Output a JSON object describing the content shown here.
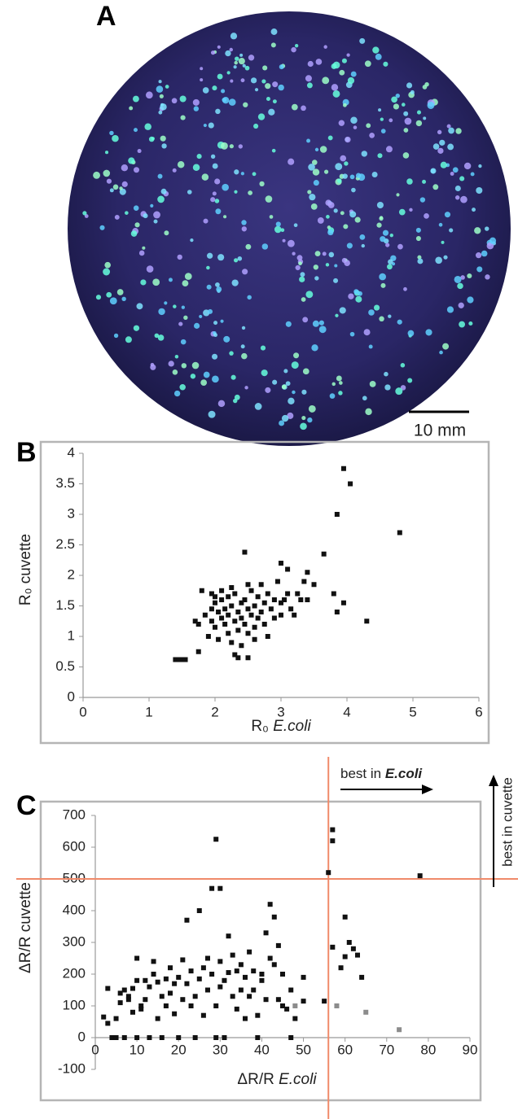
{
  "figure_a": {
    "label": "A",
    "scale_bar": "10 mm"
  },
  "chart_data": [
    {
      "type": "scatter",
      "label": "B",
      "ylabel": "R₀ cuvette",
      "xlabel": [
        {
          "text": "R₀ ",
          "style": "normal"
        },
        {
          "text": "E.coli",
          "style": "italic"
        }
      ],
      "xlim": [
        0,
        6
      ],
      "xticks": [
        0,
        1,
        2,
        3,
        4,
        5,
        6
      ],
      "ylim": [
        0,
        4
      ],
      "yticks": [
        0,
        0.5,
        1,
        1.5,
        2,
        2.5,
        3,
        3.5,
        4
      ],
      "series": [
        {
          "color": "#111111",
          "x": [
            1.4,
            1.45,
            1.5,
            1.55,
            1.7,
            1.75,
            1.8,
            1.75,
            1.85,
            1.9,
            1.95,
            1.95,
            2.0,
            2.0,
            2.05,
            2.05,
            2.1,
            2.1,
            2.1,
            2.15,
            2.15,
            2.2,
            2.2,
            2.2,
            2.25,
            2.25,
            2.3,
            2.3,
            2.3,
            2.35,
            2.35,
            2.35,
            2.4,
            2.4,
            2.4,
            2.45,
            2.45,
            2.45,
            2.5,
            2.5,
            2.5,
            2.55,
            2.55,
            2.6,
            2.6,
            2.65,
            2.65,
            2.7,
            2.7,
            2.75,
            2.75,
            2.8,
            2.8,
            2.85,
            2.9,
            2.9,
            2.95,
            3.0,
            3.0,
            3.0,
            3.05,
            3.1,
            3.1,
            3.15,
            3.2,
            3.25,
            3.3,
            3.4,
            3.4,
            3.5,
            3.35,
            3.65,
            3.8,
            3.85,
            3.85,
            3.95,
            3.95,
            4.05,
            4.3,
            4.8,
            2.0,
            1.95,
            2.25,
            2.5,
            2.6
          ],
          "values": [
            0.62,
            0.62,
            0.62,
            0.62,
            1.25,
            1.2,
            1.75,
            0.75,
            1.35,
            1.0,
            1.45,
            1.25,
            1.15,
            1.55,
            1.4,
            0.95,
            1.3,
            1.6,
            1.75,
            1.2,
            1.45,
            1.05,
            1.65,
            1.35,
            0.9,
            1.5,
            1.25,
            1.7,
            0.7,
            1.4,
            1.1,
            0.65,
            1.55,
            1.3,
            0.85,
            2.38,
            1.2,
            1.6,
            1.45,
            0.65,
            1.05,
            1.75,
            1.35,
            1.5,
            1.15,
            1.65,
            1.3,
            1.85,
            1.4,
            1.2,
            1.55,
            1.0,
            1.7,
            1.45,
            1.6,
            1.3,
            1.9,
            2.2,
            1.55,
            1.35,
            1.6,
            2.1,
            1.7,
            1.45,
            1.35,
            1.7,
            1.6,
            2.05,
            1.6,
            1.85,
            1.9,
            2.35,
            1.7,
            1.4,
            3.0,
            3.75,
            1.55,
            3.5,
            1.25,
            2.7,
            1.65,
            1.7,
            1.8,
            1.85,
            0.95
          ]
        }
      ]
    },
    {
      "type": "scatter",
      "label": "C",
      "ylabel": "ΔR/R cuvette",
      "xlabel": [
        {
          "text": "ΔR/R ",
          "style": "normal"
        },
        {
          "text": "E.coli",
          "style": "italic"
        }
      ],
      "xlim": [
        0,
        90
      ],
      "xticks": [
        0,
        10,
        20,
        30,
        40,
        50,
        60,
        70,
        80,
        90
      ],
      "ylim": [
        -100,
        700
      ],
      "yticks": [
        -100,
        0,
        100,
        200,
        300,
        400,
        500,
        600,
        700
      ],
      "thresholds": {
        "x": 56,
        "y": 500,
        "color": "#f08a6a"
      },
      "annotations": {
        "x_best": [
          {
            "text": "best in ",
            "style": "normal"
          },
          {
            "text": "E.coli",
            "style": "bold"
          }
        ],
        "y_best": "best in cuvette"
      },
      "series": [
        {
          "color": "#111111",
          "x": [
            2,
            3,
            3,
            4,
            5,
            5,
            6,
            6,
            7,
            7,
            8,
            8,
            9,
            9,
            10,
            10,
            10,
            11,
            11,
            12,
            12,
            13,
            13,
            14,
            14,
            15,
            15,
            16,
            16,
            17,
            17,
            18,
            18,
            19,
            19,
            20,
            20,
            21,
            21,
            22,
            22,
            23,
            23,
            24,
            24,
            25,
            25,
            26,
            26,
            27,
            27,
            28,
            28,
            29,
            29,
            29,
            30,
            30,
            30,
            31,
            31,
            32,
            32,
            33,
            33,
            34,
            34,
            35,
            35,
            36,
            36,
            37,
            37,
            38,
            38,
            39,
            39,
            40,
            40,
            41,
            41,
            42,
            42,
            43,
            43,
            44,
            44,
            45,
            45,
            46,
            47,
            47,
            48,
            50,
            50,
            55,
            56,
            57,
            57,
            57,
            59,
            60,
            60,
            61,
            62,
            63,
            64,
            78
          ],
          "values": [
            65,
            45,
            155,
            0,
            0,
            60,
            140,
            110,
            150,
            0,
            130,
            120,
            155,
            80,
            0,
            180,
            250,
            100,
            90,
            180,
            120,
            160,
            0,
            240,
            200,
            175,
            60,
            130,
            0,
            185,
            100,
            140,
            220,
            75,
            170,
            0,
            190,
            120,
            245,
            370,
            170,
            100,
            210,
            130,
            0,
            400,
            185,
            220,
            70,
            250,
            150,
            470,
            200,
            625,
            0,
            100,
            470,
            240,
            160,
            180,
            0,
            320,
            205,
            130,
            260,
            210,
            90,
            150,
            230,
            190,
            60,
            270,
            130,
            210,
            150,
            0,
            70,
            200,
            180,
            330,
            120,
            420,
            250,
            380,
            230,
            120,
            290,
            200,
            100,
            90,
            150,
            0,
            60,
            190,
            115,
            115,
            520,
            655,
            620,
            285,
            220,
            255,
            380,
            300,
            280,
            260,
            190,
            510
          ]
        },
        {
          "color": "#8c8c8c",
          "x": [
            48,
            58,
            65,
            73
          ],
          "values": [
            100,
            100,
            80,
            25
          ]
        }
      ]
    }
  ]
}
